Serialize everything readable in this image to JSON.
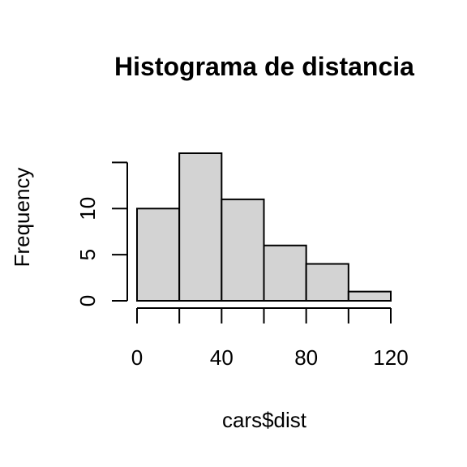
{
  "chart_data": {
    "type": "bar",
    "title": "Histograma de distancia",
    "xlabel": "cars$dist",
    "ylabel": "Frequency",
    "bin_edges": [
      0,
      20,
      40,
      60,
      80,
      100,
      120
    ],
    "categories": [
      "0-20",
      "20-40",
      "40-60",
      "60-80",
      "80-100",
      "100-120"
    ],
    "values": [
      10,
      16,
      11,
      6,
      4,
      1
    ],
    "xlim": [
      0,
      120
    ],
    "ylim": [
      0,
      16
    ],
    "xticks": [
      "0",
      "40",
      "80",
      "120"
    ],
    "yticks": [
      "0",
      "5",
      "10"
    ],
    "grid": false,
    "bar_color": "#d3d3d3"
  }
}
